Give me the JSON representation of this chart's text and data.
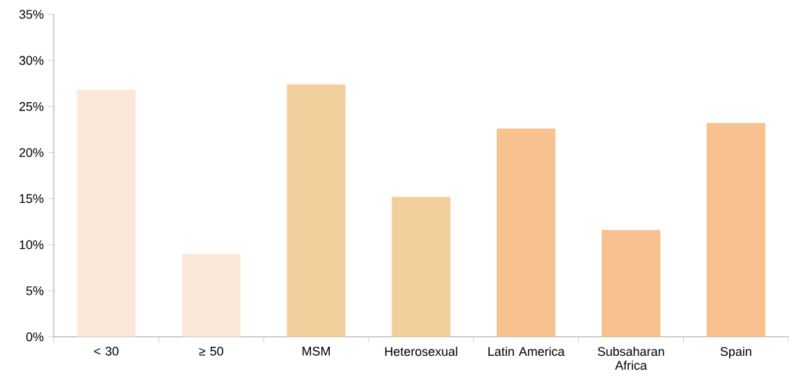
{
  "chart_data": {
    "type": "bar",
    "categories": [
      "< 30",
      "≥ 50",
      "MSM",
      "Heterosexual",
      "Latin America",
      "Subsaharan Africa",
      "Spain"
    ],
    "values": [
      26.8,
      9.0,
      27.4,
      15.2,
      22.6,
      11.6,
      23.2
    ],
    "colors": [
      "#fce8da",
      "#fce8da",
      "#f3cf9e",
      "#f3cf9e",
      "#f8c190",
      "#f8c190",
      "#f8c190"
    ],
    "ylim": [
      0,
      35
    ],
    "yticks": [
      {
        "value": 0,
        "label": "0%"
      },
      {
        "value": 5,
        "label": "5%"
      },
      {
        "value": 10,
        "label": "10%"
      },
      {
        "value": 15,
        "label": "15%"
      },
      {
        "value": 20,
        "label": "20%"
      },
      {
        "value": 25,
        "label": "25%"
      },
      {
        "value": 30,
        "label": "30%"
      },
      {
        "value": 35,
        "label": "35%"
      }
    ]
  }
}
